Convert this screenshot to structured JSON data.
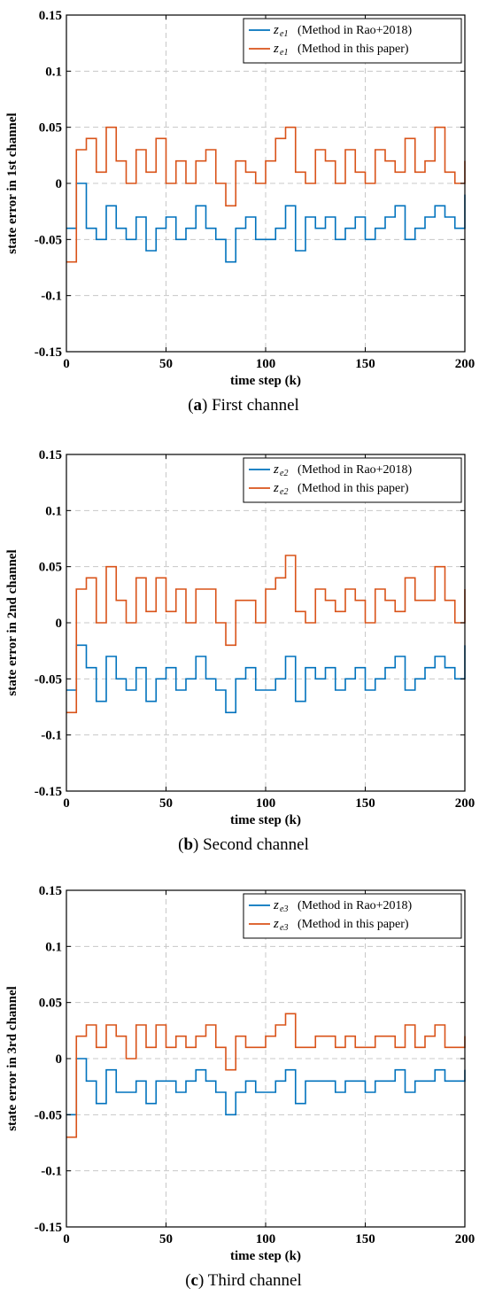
{
  "colors": {
    "series1": "#0072BD",
    "series2": "#D95319",
    "grid": "#c8c8c8"
  },
  "chart_data": [
    {
      "type": "line",
      "step": true,
      "caption_letter": "a",
      "caption_text": "First channel",
      "xlabel": "time step (k)",
      "ylabel": "state error in 1st channel",
      "xlim": [
        0,
        200
      ],
      "ylim": [
        -0.15,
        0.15
      ],
      "xticks": [
        "0",
        "50",
        "100",
        "150",
        "200"
      ],
      "yticks": [
        "0.15",
        "0.1",
        "0.05",
        "0",
        "-0.05",
        "-0.1",
        "-0.15"
      ],
      "grid": true,
      "legend_position": "top-right",
      "series": [
        {
          "symbol": "z",
          "subscript": "e1",
          "name": "(Method in Rao+2018)",
          "x": [
            0,
            5,
            10,
            15,
            20,
            25,
            30,
            35,
            40,
            45,
            50,
            55,
            60,
            65,
            70,
            75,
            80,
            85,
            90,
            95,
            100,
            105,
            110,
            115,
            120,
            125,
            130,
            135,
            140,
            145,
            150,
            155,
            160,
            165,
            170,
            175,
            180,
            185,
            190,
            195,
            200
          ],
          "values": [
            -0.04,
            0.0,
            -0.04,
            -0.05,
            -0.02,
            -0.04,
            -0.05,
            -0.03,
            -0.06,
            -0.04,
            -0.03,
            -0.05,
            -0.04,
            -0.02,
            -0.04,
            -0.05,
            -0.07,
            -0.04,
            -0.03,
            -0.05,
            -0.05,
            -0.04,
            -0.02,
            -0.06,
            -0.03,
            -0.04,
            -0.03,
            -0.05,
            -0.04,
            -0.03,
            -0.05,
            -0.04,
            -0.03,
            -0.02,
            -0.05,
            -0.04,
            -0.03,
            -0.02,
            -0.03,
            -0.04,
            -0.01
          ]
        },
        {
          "symbol": "z",
          "subscript": "e1",
          "name": "(Method in this paper)",
          "x": [
            0,
            5,
            10,
            15,
            20,
            25,
            30,
            35,
            40,
            45,
            50,
            55,
            60,
            65,
            70,
            75,
            80,
            85,
            90,
            95,
            100,
            105,
            110,
            115,
            120,
            125,
            130,
            135,
            140,
            145,
            150,
            155,
            160,
            165,
            170,
            175,
            180,
            185,
            190,
            195,
            200
          ],
          "values": [
            -0.07,
            0.03,
            0.04,
            0.01,
            0.05,
            0.02,
            0.0,
            0.03,
            0.01,
            0.04,
            0.0,
            0.02,
            0.0,
            0.02,
            0.03,
            0.0,
            -0.02,
            0.02,
            0.01,
            0.0,
            0.02,
            0.04,
            0.05,
            0.01,
            0.0,
            0.03,
            0.02,
            0.0,
            0.03,
            0.01,
            0.0,
            0.03,
            0.02,
            0.01,
            0.04,
            0.01,
            0.02,
            0.05,
            0.01,
            0.0,
            0.02
          ]
        }
      ]
    },
    {
      "type": "line",
      "step": true,
      "caption_letter": "b",
      "caption_text": "Second channel",
      "xlabel": "time step (k)",
      "ylabel": "state error in 2nd channel",
      "xlim": [
        0,
        200
      ],
      "ylim": [
        -0.15,
        0.15
      ],
      "xticks": [
        "0",
        "50",
        "100",
        "150",
        "200"
      ],
      "yticks": [
        "0.15",
        "0.1",
        "0.05",
        "0",
        "-0.05",
        "-0.1",
        "-0.15"
      ],
      "grid": true,
      "legend_position": "top-right",
      "series": [
        {
          "symbol": "z",
          "subscript": "e2",
          "name": "(Method in Rao+2018)",
          "x": [
            0,
            5,
            10,
            15,
            20,
            25,
            30,
            35,
            40,
            45,
            50,
            55,
            60,
            65,
            70,
            75,
            80,
            85,
            90,
            95,
            100,
            105,
            110,
            115,
            120,
            125,
            130,
            135,
            140,
            145,
            150,
            155,
            160,
            165,
            170,
            175,
            180,
            185,
            190,
            195,
            200
          ],
          "values": [
            -0.06,
            -0.02,
            -0.04,
            -0.07,
            -0.03,
            -0.05,
            -0.06,
            -0.04,
            -0.07,
            -0.05,
            -0.04,
            -0.06,
            -0.05,
            -0.03,
            -0.05,
            -0.06,
            -0.08,
            -0.05,
            -0.04,
            -0.06,
            -0.06,
            -0.05,
            -0.03,
            -0.07,
            -0.04,
            -0.05,
            -0.04,
            -0.06,
            -0.05,
            -0.04,
            -0.06,
            -0.05,
            -0.04,
            -0.03,
            -0.06,
            -0.05,
            -0.04,
            -0.03,
            -0.04,
            -0.05,
            -0.02
          ]
        },
        {
          "symbol": "z",
          "subscript": "e2",
          "name": "(Method in this paper)",
          "x": [
            0,
            5,
            10,
            15,
            20,
            25,
            30,
            35,
            40,
            45,
            50,
            55,
            60,
            65,
            70,
            75,
            80,
            85,
            90,
            95,
            100,
            105,
            110,
            115,
            120,
            125,
            130,
            135,
            140,
            145,
            150,
            155,
            160,
            165,
            170,
            175,
            180,
            185,
            190,
            195,
            200
          ],
          "values": [
            -0.08,
            0.03,
            0.04,
            0.0,
            0.05,
            0.02,
            0.0,
            0.04,
            0.01,
            0.04,
            0.01,
            0.03,
            0.0,
            0.03,
            0.03,
            0.0,
            -0.02,
            0.02,
            0.02,
            0.0,
            0.03,
            0.04,
            0.06,
            0.01,
            0.0,
            0.03,
            0.02,
            0.01,
            0.03,
            0.02,
            0.0,
            0.03,
            0.02,
            0.01,
            0.04,
            0.02,
            0.02,
            0.05,
            0.02,
            0.0,
            0.03
          ]
        }
      ]
    },
    {
      "type": "line",
      "step": true,
      "caption_letter": "c",
      "caption_text": "Third channel",
      "xlabel": "time step (k)",
      "ylabel": "state error in 3rd channel",
      "xlim": [
        0,
        200
      ],
      "ylim": [
        -0.15,
        0.15
      ],
      "xticks": [
        "0",
        "50",
        "100",
        "150",
        "200"
      ],
      "yticks": [
        "0.15",
        "0.1",
        "0.05",
        "0",
        "-0.05",
        "-0.1",
        "-0.15"
      ],
      "grid": true,
      "legend_position": "top-right",
      "series": [
        {
          "symbol": "z",
          "subscript": "e3",
          "name": "(Method in Rao+2018)",
          "x": [
            0,
            5,
            10,
            15,
            20,
            25,
            30,
            35,
            40,
            45,
            50,
            55,
            60,
            65,
            70,
            75,
            80,
            85,
            90,
            95,
            100,
            105,
            110,
            115,
            120,
            125,
            130,
            135,
            140,
            145,
            150,
            155,
            160,
            165,
            170,
            175,
            180,
            185,
            190,
            195,
            200
          ],
          "values": [
            -0.05,
            0.0,
            -0.02,
            -0.04,
            -0.01,
            -0.03,
            -0.03,
            -0.02,
            -0.04,
            -0.02,
            -0.02,
            -0.03,
            -0.02,
            -0.01,
            -0.02,
            -0.03,
            -0.05,
            -0.03,
            -0.02,
            -0.03,
            -0.03,
            -0.02,
            -0.01,
            -0.04,
            -0.02,
            -0.02,
            -0.02,
            -0.03,
            -0.02,
            -0.02,
            -0.03,
            -0.02,
            -0.02,
            -0.01,
            -0.03,
            -0.02,
            -0.02,
            -0.01,
            -0.02,
            -0.02,
            -0.01
          ]
        },
        {
          "symbol": "z",
          "subscript": "e3",
          "name": "(Method in this paper)",
          "x": [
            0,
            5,
            10,
            15,
            20,
            25,
            30,
            35,
            40,
            45,
            50,
            55,
            60,
            65,
            70,
            75,
            80,
            85,
            90,
            95,
            100,
            105,
            110,
            115,
            120,
            125,
            130,
            135,
            140,
            145,
            150,
            155,
            160,
            165,
            170,
            175,
            180,
            185,
            190,
            195,
            200
          ],
          "values": [
            -0.07,
            0.02,
            0.03,
            0.01,
            0.03,
            0.02,
            0.0,
            0.03,
            0.01,
            0.03,
            0.01,
            0.02,
            0.01,
            0.02,
            0.03,
            0.01,
            -0.01,
            0.02,
            0.01,
            0.01,
            0.02,
            0.03,
            0.04,
            0.01,
            0.01,
            0.02,
            0.02,
            0.01,
            0.02,
            0.01,
            0.01,
            0.02,
            0.02,
            0.01,
            0.03,
            0.01,
            0.02,
            0.03,
            0.01,
            0.01,
            0.02
          ]
        }
      ]
    }
  ]
}
